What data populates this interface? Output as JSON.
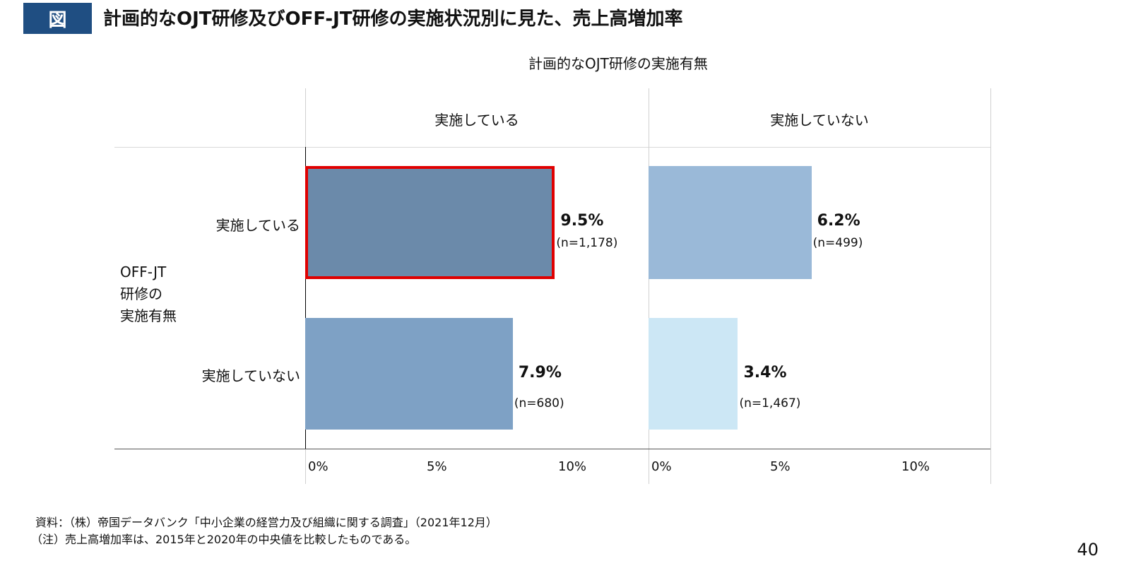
{
  "header": {
    "badge": "図",
    "title": "計画的なOJT研修及びOFF-JT研修の実施状況別に見た、売上高増加率"
  },
  "chart_data": {
    "type": "bar",
    "orientation": "horizontal",
    "column_axis_title": "計画的なOJT研修の実施有無",
    "row_axis_title": "OFF-JT研修の実施有無",
    "row_axis_title_lines": [
      "OFF-JT",
      "研修の",
      "実施有無"
    ],
    "columns": [
      "実施している",
      "実施していない"
    ],
    "rows": [
      "実施している",
      "実施していない"
    ],
    "values": [
      [
        9.5,
        6.2
      ],
      [
        7.9,
        3.4
      ]
    ],
    "value_labels": [
      [
        "9.5%",
        "6.2%"
      ],
      [
        "7.9%",
        "3.4%"
      ]
    ],
    "n_labels": [
      [
        "(n=1,178)",
        "(n=499)"
      ],
      [
        "(n=680)",
        "(n=1,467)"
      ]
    ],
    "colors": [
      [
        "#6b8aaa",
        "#9ab9d8"
      ],
      [
        "#7ea1c5",
        "#cce7f5"
      ]
    ],
    "highlight": {
      "row": 0,
      "column": 0,
      "color": "#e00000"
    },
    "x_ticks": [
      "0%",
      "5%",
      "10%"
    ],
    "x_tick_values": [
      0,
      5,
      10
    ],
    "xlim": [
      0,
      13
    ],
    "unit": "%"
  },
  "footer": {
    "source": "資料：（株）帝国データバンク「中小企業の経営力及び組織に関する調査」（2021年12月）",
    "note": "（注）売上高増加率は、2015年と2020年の中央値を比較したものである。",
    "page": "40"
  }
}
